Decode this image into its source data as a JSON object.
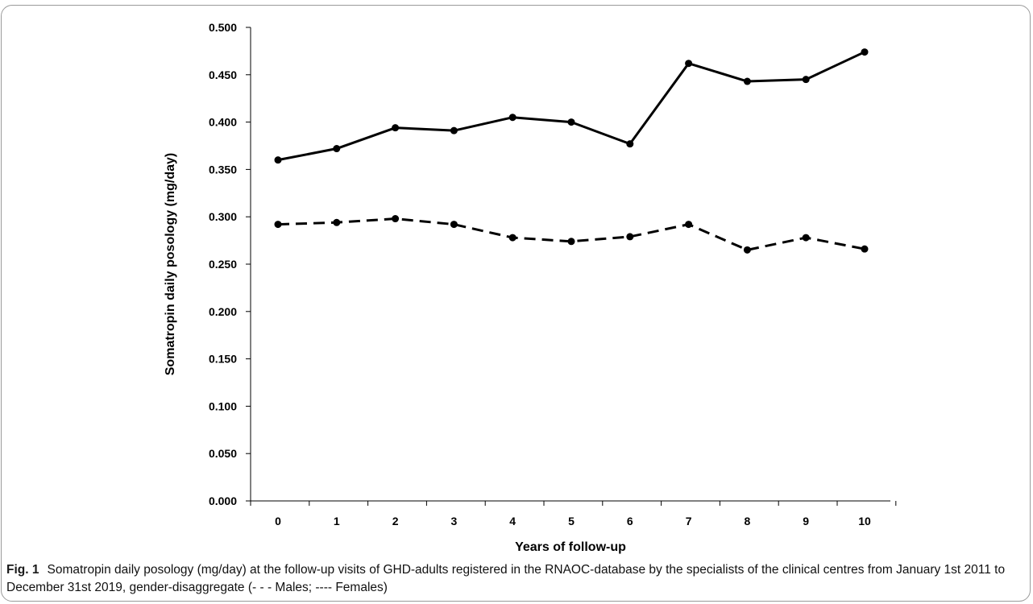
{
  "caption": {
    "label": "Fig. 1",
    "text": "Somatropin daily posology (mg/day) at the follow-up visits of GHD-adults registered in the RNAOC-database by the specialists of the clinical centres from January 1st 2011 to December 31st 2019, gender-disaggregate (- - - Males; ---- Females)"
  },
  "chart_data": {
    "type": "line",
    "title": "",
    "xlabel": "Years of follow-up",
    "ylabel": "Somatropin daily posology (mg/day)",
    "categories": [
      "0",
      "1",
      "2",
      "3",
      "4",
      "5",
      "6",
      "7",
      "8",
      "9",
      "10"
    ],
    "ylim": [
      0,
      0.5
    ],
    "yticks": [
      "0.000",
      "0.050",
      "0.100",
      "0.150",
      "0.200",
      "0.250",
      "0.300",
      "0.350",
      "0.400",
      "0.450",
      "0.500"
    ],
    "grid": false,
    "legend": "none",
    "series": [
      {
        "style": "solid",
        "color": "#000000",
        "values": [
          0.36,
          0.372,
          0.394,
          0.391,
          0.405,
          0.4,
          0.377,
          0.462,
          0.443,
          0.445,
          0.474
        ]
      },
      {
        "style": "dashed",
        "color": "#000000",
        "values": [
          0.292,
          0.294,
          0.298,
          0.292,
          0.278,
          0.274,
          0.279,
          0.292,
          0.265,
          0.278,
          0.266
        ]
      }
    ]
  }
}
